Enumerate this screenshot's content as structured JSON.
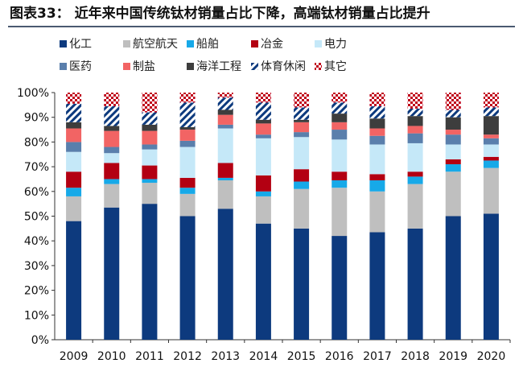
{
  "chart_data": {
    "type": "bar",
    "stacked": true,
    "title": "图表33：   近年来中国传统钛材销量占比下降，高端钛材销量占比提升",
    "xlabel": "",
    "ylabel": "",
    "ylim": [
      0,
      100
    ],
    "y_ticks": [
      "0%",
      "10%",
      "20%",
      "30%",
      "40%",
      "50%",
      "60%",
      "70%",
      "80%",
      "90%",
      "100%"
    ],
    "legend_position": "top",
    "categories": [
      "2009",
      "2010",
      "2011",
      "2012",
      "2013",
      "2014",
      "2015",
      "2016",
      "2017",
      "2018",
      "2019",
      "2020"
    ],
    "series": [
      {
        "name": "化工",
        "color": "#0d3a7e",
        "pattern": "solid",
        "values": [
          48,
          53.5,
          55,
          50,
          53,
          47,
          45,
          42,
          43.5,
          45,
          50,
          51
        ]
      },
      {
        "name": "航空航天",
        "color": "#bfbfbf",
        "pattern": "solid",
        "values": [
          10,
          9.5,
          8.5,
          9,
          11.5,
          11,
          16,
          19.5,
          16.5,
          18,
          18,
          18.5
        ]
      },
      {
        "name": "船舶",
        "color": "#17a9e8",
        "pattern": "solid",
        "values": [
          3.5,
          2,
          1.5,
          2.5,
          1,
          2,
          3,
          3,
          4.5,
          3,
          3,
          3
        ]
      },
      {
        "name": "冶金",
        "color": "#b30012",
        "pattern": "solid",
        "values": [
          6.5,
          6.5,
          5.5,
          4,
          6,
          6.5,
          5,
          3.5,
          2.5,
          2,
          2,
          1.5
        ]
      },
      {
        "name": "电力",
        "color": "#c5e8f8",
        "pattern": "solid",
        "values": [
          8,
          4,
          6.5,
          12.5,
          14,
          15,
          13,
          13,
          12,
          11.5,
          6,
          5
        ]
      },
      {
        "name": "医药",
        "color": "#5a7fac",
        "pattern": "solid",
        "values": [
          4,
          2.5,
          2,
          2.5,
          1.5,
          1.5,
          2,
          4,
          3.5,
          4,
          4,
          2.5
        ]
      },
      {
        "name": "制盐",
        "color": "#f26464",
        "pattern": "solid",
        "values": [
          5.5,
          6.5,
          5.5,
          4.5,
          4,
          4.5,
          4,
          3,
          3,
          3,
          2,
          1.5
        ]
      },
      {
        "name": "海洋工程",
        "color": "#3d3d3d",
        "pattern": "solid",
        "values": [
          2.5,
          2,
          2.5,
          1,
          2,
          1.5,
          1,
          3.5,
          4,
          4,
          5,
          7.5
        ]
      },
      {
        "name": "体育休闲",
        "color": "#0d3a7e",
        "pattern": "hatch",
        "values": [
          7.5,
          8,
          5,
          10,
          5,
          7,
          5,
          4.5,
          5,
          3,
          3,
          3.5
        ]
      },
      {
        "name": "其它",
        "color": "#c0001a",
        "pattern": "checker",
        "values": [
          4.5,
          5.5,
          8,
          4,
          2,
          4,
          6,
          4,
          5.5,
          6.5,
          7,
          6
        ]
      }
    ]
  }
}
